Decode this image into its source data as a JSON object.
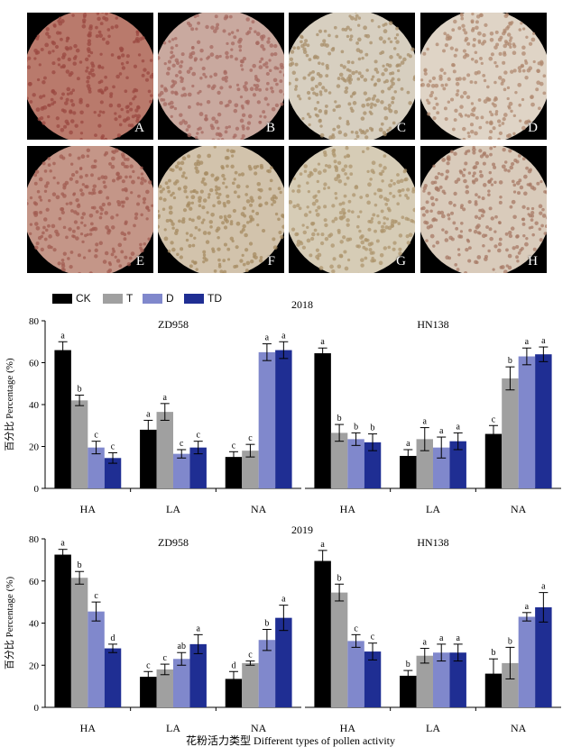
{
  "micrographs": {
    "panels": [
      {
        "label": "A",
        "tint": "#b97a6c",
        "dot": "#9b4a42"
      },
      {
        "label": "B",
        "tint": "#c9a99f",
        "dot": "#a56a60"
      },
      {
        "label": "C",
        "tint": "#d7cfc0",
        "dot": "#a88f6b"
      },
      {
        "label": "D",
        "tint": "#dfd4c6",
        "dot": "#b08a70"
      },
      {
        "label": "E",
        "tint": "#c49688",
        "dot": "#a25c52"
      },
      {
        "label": "F",
        "tint": "#d2c3ac",
        "dot": "#a58b62"
      },
      {
        "label": "G",
        "tint": "#d6ccb6",
        "dot": "#ad966d"
      },
      {
        "label": "H",
        "tint": "#d9cbbb",
        "dot": "#a77a66"
      }
    ]
  },
  "legend": {
    "items": [
      {
        "label": "CK",
        "color": "#000000"
      },
      {
        "label": "T",
        "color": "#a0a0a0"
      },
      {
        "label": "D",
        "color": "#8088cc"
      },
      {
        "label": "TD",
        "color": "#1f2e93"
      }
    ]
  },
  "ylabel": "百分比 Percentage (%)",
  "xlabel": "花粉活力类型 Different types of pollen activity",
  "chart_data": [
    {
      "type": "bar",
      "year": "2018",
      "title": "ZD958",
      "ylim": [
        0,
        80
      ],
      "yticks": [
        0,
        20,
        40,
        60,
        80
      ],
      "categories": [
        "HA",
        "LA",
        "NA"
      ],
      "series": [
        {
          "name": "CK",
          "values": [
            66,
            28,
            15
          ],
          "errors": [
            4,
            4.5,
            2.5
          ],
          "letters": [
            "a",
            "a",
            "c"
          ]
        },
        {
          "name": "T",
          "values": [
            42,
            36.5,
            18
          ],
          "errors": [
            2.5,
            4,
            3
          ],
          "letters": [
            "b",
            "a",
            "c"
          ]
        },
        {
          "name": "D",
          "values": [
            19.5,
            16.5,
            65
          ],
          "errors": [
            3,
            2,
            4
          ],
          "letters": [
            "c",
            "c",
            "a"
          ]
        },
        {
          "name": "TD",
          "values": [
            14.5,
            19.5,
            66
          ],
          "errors": [
            2.5,
            3,
            4
          ],
          "letters": [
            "c",
            "c",
            "a"
          ]
        }
      ]
    },
    {
      "type": "bar",
      "year": "",
      "title": "HN138",
      "ylim": [
        0,
        80
      ],
      "yticks": [],
      "categories": [
        "HA",
        "LA",
        "NA"
      ],
      "series": [
        {
          "name": "CK",
          "values": [
            64.5,
            15.5,
            26
          ],
          "errors": [
            2.5,
            3,
            4
          ],
          "letters": [
            "a",
            "a",
            "c"
          ]
        },
        {
          "name": "T",
          "values": [
            26.5,
            23.5,
            52.5
          ],
          "errors": [
            4,
            5.5,
            5.5
          ],
          "letters": [
            "b",
            "a",
            "b"
          ]
        },
        {
          "name": "D",
          "values": [
            23.5,
            19.5,
            63
          ],
          "errors": [
            3,
            5,
            4
          ],
          "letters": [
            "b",
            "a",
            "a"
          ]
        },
        {
          "name": "TD",
          "values": [
            22,
            22.5,
            64
          ],
          "errors": [
            4,
            4,
            3.5
          ],
          "letters": [
            "b",
            "a",
            "a"
          ]
        }
      ]
    },
    {
      "type": "bar",
      "year": "2019",
      "title": "ZD958",
      "ylim": [
        0,
        80
      ],
      "yticks": [
        0,
        20,
        40,
        60,
        80
      ],
      "categories": [
        "HA",
        "LA",
        "NA"
      ],
      "series": [
        {
          "name": "CK",
          "values": [
            72.5,
            14.5,
            13.5
          ],
          "errors": [
            2.5,
            2.5,
            3.5
          ],
          "letters": [
            "a",
            "c",
            "d"
          ]
        },
        {
          "name": "T",
          "values": [
            61.5,
            18,
            21
          ],
          "errors": [
            3,
            2.5,
            1
          ],
          "letters": [
            "b",
            "c",
            "c"
          ]
        },
        {
          "name": "D",
          "values": [
            45.5,
            23,
            32
          ],
          "errors": [
            4.5,
            3,
            5
          ],
          "letters": [
            "c",
            "ab",
            "b"
          ]
        },
        {
          "name": "TD",
          "values": [
            28,
            30,
            42.5
          ],
          "errors": [
            2,
            4.5,
            6
          ],
          "letters": [
            "d",
            "a",
            "a"
          ]
        }
      ]
    },
    {
      "type": "bar",
      "year": "",
      "title": "HN138",
      "ylim": [
        0,
        80
      ],
      "yticks": [],
      "categories": [
        "HA",
        "LA",
        "NA"
      ],
      "series": [
        {
          "name": "CK",
          "values": [
            69.5,
            15,
            16
          ],
          "errors": [
            5,
            2.5,
            7
          ],
          "letters": [
            "a",
            "b",
            "b"
          ]
        },
        {
          "name": "T",
          "values": [
            54.5,
            24.5,
            21
          ],
          "errors": [
            4,
            3.5,
            7.5
          ],
          "letters": [
            "b",
            "a",
            "b"
          ]
        },
        {
          "name": "D",
          "values": [
            31.5,
            26,
            43
          ],
          "errors": [
            3,
            4,
            2
          ],
          "letters": [
            "c",
            "a",
            "a"
          ]
        },
        {
          "name": "TD",
          "values": [
            26.5,
            26,
            47.5
          ],
          "errors": [
            4,
            4,
            7
          ],
          "letters": [
            "c",
            "a",
            "a"
          ]
        }
      ]
    }
  ]
}
